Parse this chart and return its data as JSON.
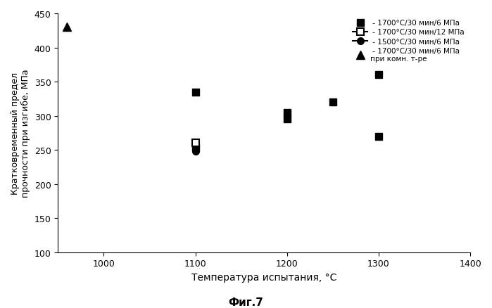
{
  "title": "Фиг.7",
  "ylabel": "Кратковременный предел\nпрочности при изгибе, МПа",
  "xlabel": "Температура испытания, °C",
  "xlim": [
    950,
    1400
  ],
  "ylim": [
    100,
    450
  ],
  "xticks": [
    1000,
    1100,
    1200,
    1300,
    1400
  ],
  "yticks": [
    100,
    150,
    200,
    250,
    300,
    350,
    400,
    450
  ],
  "s1_x": [
    1100,
    1100,
    1200,
    1200,
    1250,
    1300,
    1300
  ],
  "s1_y": [
    335,
    253,
    305,
    295,
    320,
    360,
    270
  ],
  "s2_x": [
    1100
  ],
  "s2_y": [
    260
  ],
  "s3_x": [
    1100
  ],
  "s3_y": [
    248
  ],
  "s4_x": [
    960
  ],
  "s4_y": [
    430
  ],
  "legend_labels": [
    " - 1700°C/30 мин/6 МПа",
    " - 1700°C/30 мин/12 МПа",
    " - 1500°C/30 мин/6 МПа",
    " - 1700°C/30 мин/6 МПа\nпри комн. т-ре"
  ],
  "background_color": "#ffffff"
}
